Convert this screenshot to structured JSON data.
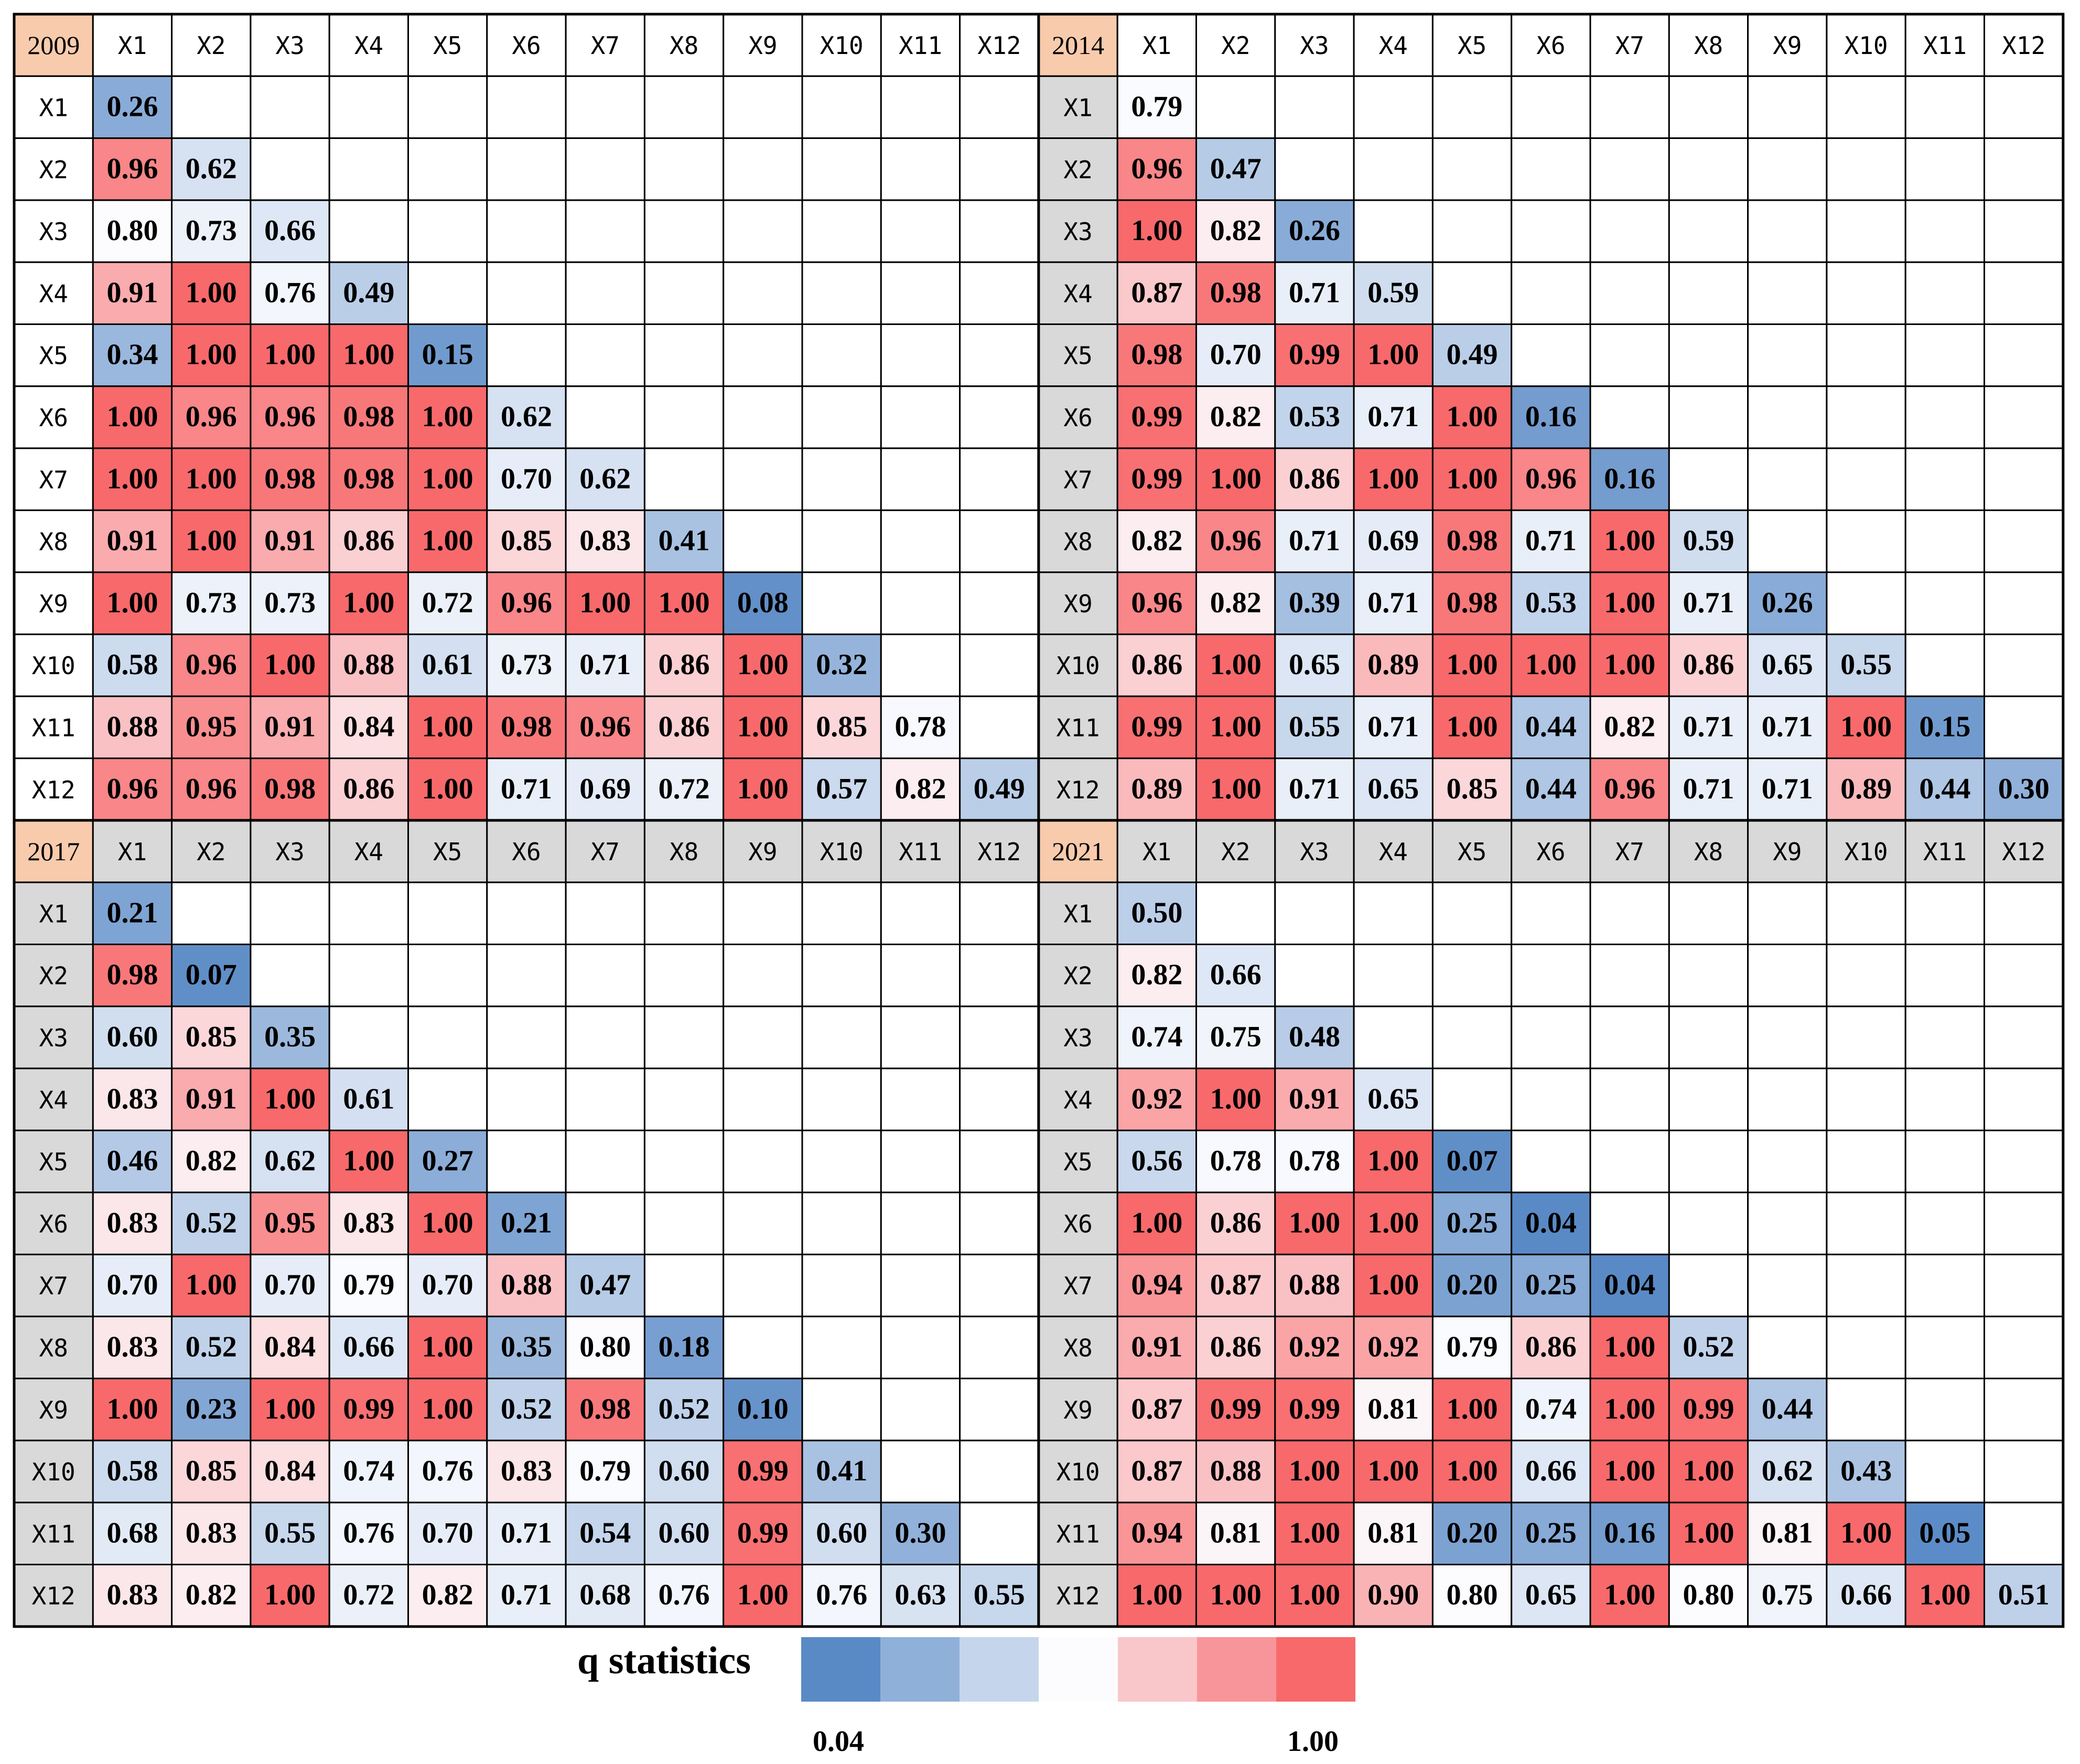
{
  "chart_data": {
    "type": "heatmap",
    "title": "",
    "variables": [
      "X1",
      "X2",
      "X3",
      "X4",
      "X5",
      "X6",
      "X7",
      "X8",
      "X9",
      "X10",
      "X11",
      "X12"
    ],
    "panels": [
      {
        "year": "2009",
        "matrix": [
          [
            0.26
          ],
          [
            0.96,
            0.62
          ],
          [
            0.8,
            0.73,
            0.66
          ],
          [
            0.91,
            1.0,
            0.76,
            0.49
          ],
          [
            0.34,
            1.0,
            1.0,
            1.0,
            0.15
          ],
          [
            1.0,
            0.96,
            0.96,
            0.98,
            1.0,
            0.62
          ],
          [
            1.0,
            1.0,
            0.98,
            0.98,
            1.0,
            0.7,
            0.62
          ],
          [
            0.91,
            1.0,
            0.91,
            0.86,
            1.0,
            0.85,
            0.83,
            0.41
          ],
          [
            1.0,
            0.73,
            0.73,
            1.0,
            0.72,
            0.96,
            1.0,
            1.0,
            0.08
          ],
          [
            0.58,
            0.96,
            1.0,
            0.88,
            0.61,
            0.73,
            0.71,
            0.86,
            1.0,
            0.32
          ],
          [
            0.88,
            0.95,
            0.91,
            0.84,
            1.0,
            0.98,
            0.96,
            0.86,
            1.0,
            0.85,
            0.78
          ],
          [
            0.96,
            0.96,
            0.98,
            0.86,
            1.0,
            0.71,
            0.69,
            0.72,
            1.0,
            0.57,
            0.82,
            0.49
          ]
        ]
      },
      {
        "year": "2014",
        "matrix": [
          [
            0.79
          ],
          [
            0.96,
            0.47
          ],
          [
            1.0,
            0.82,
            0.26
          ],
          [
            0.87,
            0.98,
            0.71,
            0.59
          ],
          [
            0.98,
            0.7,
            0.99,
            1.0,
            0.49
          ],
          [
            0.99,
            0.82,
            0.53,
            0.71,
            1.0,
            0.16
          ],
          [
            0.99,
            1.0,
            0.86,
            1.0,
            1.0,
            0.96,
            0.16
          ],
          [
            0.82,
            0.96,
            0.71,
            0.69,
            0.98,
            0.71,
            1.0,
            0.59
          ],
          [
            0.96,
            0.82,
            0.39,
            0.71,
            0.98,
            0.53,
            1.0,
            0.71,
            0.26
          ],
          [
            0.86,
            1.0,
            0.65,
            0.89,
            1.0,
            1.0,
            1.0,
            0.86,
            0.65,
            0.55
          ],
          [
            0.99,
            1.0,
            0.55,
            0.71,
            1.0,
            0.44,
            0.82,
            0.71,
            0.71,
            1.0,
            0.15
          ],
          [
            0.89,
            1.0,
            0.71,
            0.65,
            0.85,
            0.44,
            0.96,
            0.71,
            0.71,
            0.89,
            0.44,
            0.3
          ]
        ]
      },
      {
        "year": "2017",
        "matrix": [
          [
            0.21
          ],
          [
            0.98,
            0.07
          ],
          [
            0.6,
            0.85,
            0.35
          ],
          [
            0.83,
            0.91,
            1.0,
            0.61
          ],
          [
            0.46,
            0.82,
            0.62,
            1.0,
            0.27
          ],
          [
            0.83,
            0.52,
            0.95,
            0.83,
            1.0,
            0.21
          ],
          [
            0.7,
            1.0,
            0.7,
            0.79,
            0.7,
            0.88,
            0.47
          ],
          [
            0.83,
            0.52,
            0.84,
            0.66,
            1.0,
            0.35,
            0.8,
            0.18
          ],
          [
            1.0,
            0.23,
            1.0,
            0.99,
            1.0,
            0.52,
            0.98,
            0.52,
            0.1
          ],
          [
            0.58,
            0.85,
            0.84,
            0.74,
            0.76,
            0.83,
            0.79,
            0.6,
            0.99,
            0.41
          ],
          [
            0.68,
            0.83,
            0.55,
            0.76,
            0.7,
            0.71,
            0.54,
            0.6,
            0.99,
            0.6,
            0.3
          ],
          [
            0.83,
            0.82,
            1.0,
            0.72,
            0.82,
            0.71,
            0.68,
            0.76,
            1.0,
            0.76,
            0.63,
            0.55
          ]
        ]
      },
      {
        "year": "2021",
        "matrix": [
          [
            0.5
          ],
          [
            0.82,
            0.66
          ],
          [
            0.74,
            0.75,
            0.48
          ],
          [
            0.92,
            1.0,
            0.91,
            0.65
          ],
          [
            0.56,
            0.78,
            0.78,
            1.0,
            0.07
          ],
          [
            1.0,
            0.86,
            1.0,
            1.0,
            0.25,
            0.04
          ],
          [
            0.94,
            0.87,
            0.88,
            1.0,
            0.2,
            0.25,
            0.04
          ],
          [
            0.91,
            0.86,
            0.92,
            0.92,
            0.79,
            0.86,
            1.0,
            0.52
          ],
          [
            0.87,
            0.99,
            0.99,
            0.81,
            1.0,
            0.74,
            1.0,
            0.99,
            0.44
          ],
          [
            0.87,
            0.88,
            1.0,
            1.0,
            1.0,
            0.66,
            1.0,
            1.0,
            0.62,
            0.43
          ],
          [
            0.94,
            0.81,
            1.0,
            0.81,
            0.2,
            0.25,
            0.16,
            1.0,
            0.81,
            1.0,
            0.05
          ],
          [
            1.0,
            1.0,
            1.0,
            0.9,
            0.8,
            0.65,
            1.0,
            0.8,
            0.75,
            0.66,
            1.0,
            0.51
          ]
        ]
      }
    ],
    "legend": {
      "title": "q statistics",
      "min_label": "0.04",
      "max_label": "1.00",
      "min": 0.04,
      "max": 1.0,
      "swatches": [
        "#5a8ac6",
        "#8fb0d9",
        "#c5d5eb",
        "#fcfcff",
        "#f9c7ca",
        "#f8959a",
        "#f8696b"
      ]
    },
    "colors": {
      "low": "#5a8ac6",
      "mid": "#fcfcff",
      "high": "#f8696b",
      "year_header": "#f8cbad",
      "axis_header": "#d9d9d9",
      "grid": "#000000"
    }
  }
}
